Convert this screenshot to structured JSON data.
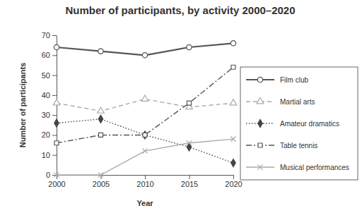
{
  "chart_data": {
    "type": "line",
    "title": "Number of participants, by activity 2000–2020",
    "x_label": "Year",
    "y_label": "Number of participants",
    "x": [
      2000,
      2005,
      2010,
      2015,
      2020
    ],
    "xlim": [
      2000,
      2020
    ],
    "xticks": [
      2000,
      2005,
      2010,
      2015,
      2020
    ],
    "ylim": [
      0,
      70
    ],
    "yticks": [
      0,
      10,
      20,
      30,
      40,
      50,
      60,
      70
    ],
    "grid": false,
    "legend": "right",
    "series": [
      {
        "name": "Film club",
        "color": "#555555",
        "marker": "circle",
        "line_style": "solid",
        "values": [
          64,
          62,
          60,
          64,
          66
        ]
      },
      {
        "name": "Martial arts",
        "color": "#aaaaaa",
        "marker": "triangle",
        "line_style": "dashed",
        "values": [
          36,
          32,
          38,
          34,
          36
        ]
      },
      {
        "name": "Amateur dramatics",
        "color": "#444444",
        "marker": "diamond",
        "line_style": "dotted",
        "values": [
          26,
          28,
          20,
          14,
          6
        ]
      },
      {
        "name": "Table tennis",
        "color": "#555555",
        "marker": "square",
        "line_style": "dashdot",
        "values": [
          16,
          20,
          20,
          36,
          54
        ]
      },
      {
        "name": "Musical performances",
        "color": "#aaaaaa",
        "marker": "x",
        "line_style": "solid",
        "values": [
          0,
          0,
          12,
          16,
          18
        ]
      }
    ]
  }
}
